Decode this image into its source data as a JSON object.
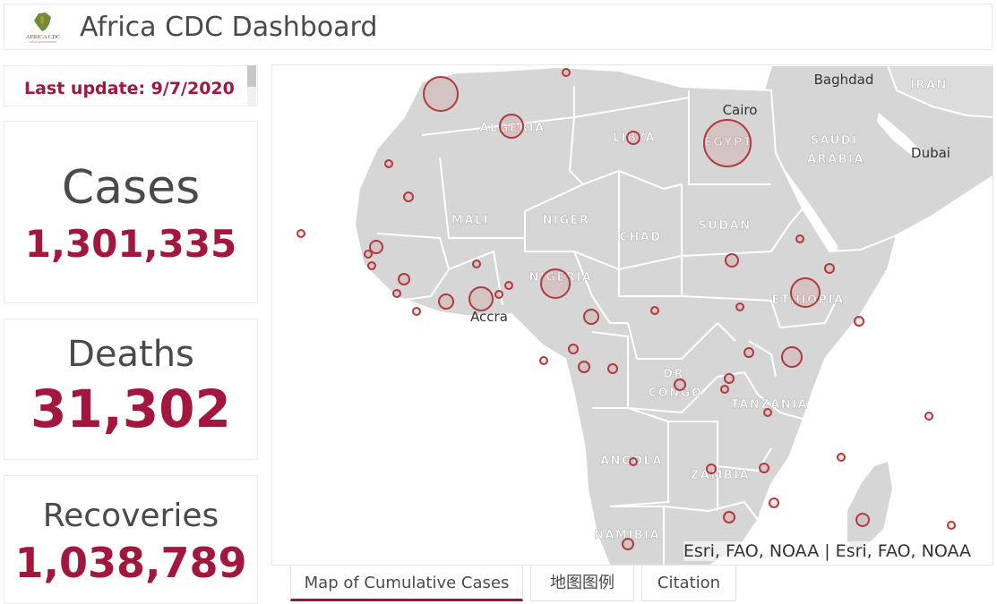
{
  "header": {
    "title": "Africa CDC Dashboard",
    "logo_text": "AFRICA CDC"
  },
  "status": {
    "last_update": "Last update: 9/7/2020"
  },
  "stats": {
    "cases": {
      "label": "Cases",
      "value": "1,301,335"
    },
    "deaths": {
      "label": "Deaths",
      "value": "31,302"
    },
    "recoveries": {
      "label": "Recoveries",
      "value": "1,038,789"
    }
  },
  "map": {
    "attribution": "Esri, FAO, NOAA | Esri, FAO, NOAA",
    "country_labels": [
      "ALGERIA",
      "LIBYA",
      "EGYPT",
      "SAUDI",
      "ARABIA",
      "MALI",
      "NIGER",
      "CHAD",
      "SUDAN",
      "NIGERIA",
      "ETHIOPIA",
      "DR",
      "CONGO",
      "TANZANIA",
      "ANGOLA",
      "ZAMBIA",
      "NAMIBIA",
      "IRAN"
    ],
    "city_labels": [
      "Baghdad",
      "Cairo",
      "Dubai",
      "Accra"
    ]
  },
  "tabs": [
    {
      "label": "Map of Cumulative Cases",
      "active": true
    },
    {
      "label": "地图图例",
      "active": false
    },
    {
      "label": "Citation",
      "active": false
    }
  ],
  "colors": {
    "accent": "#a3173f",
    "tab_underline": "#8b1a3a",
    "land": "#d6d6d6",
    "marker": "#b23a3a"
  }
}
